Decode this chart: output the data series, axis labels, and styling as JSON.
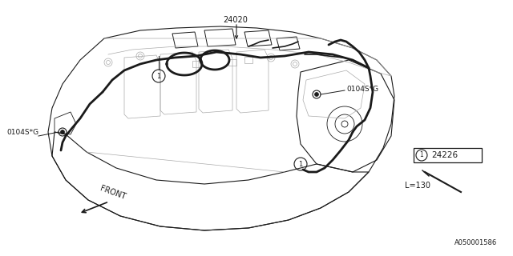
{
  "bg_color": "#ffffff",
  "line_color": "#1a1a1a",
  "light_line_color": "#aaaaaa",
  "part_number_24020": "24020",
  "part_number_24226": "24226",
  "label_0104S_G": "0104S*G",
  "label_front": "FRONT",
  "label_L130": "L=130",
  "footnote": "A050001586",
  "circle_symbol": "1",
  "fig_width": 6.4,
  "fig_height": 3.2,
  "dpi": 100
}
